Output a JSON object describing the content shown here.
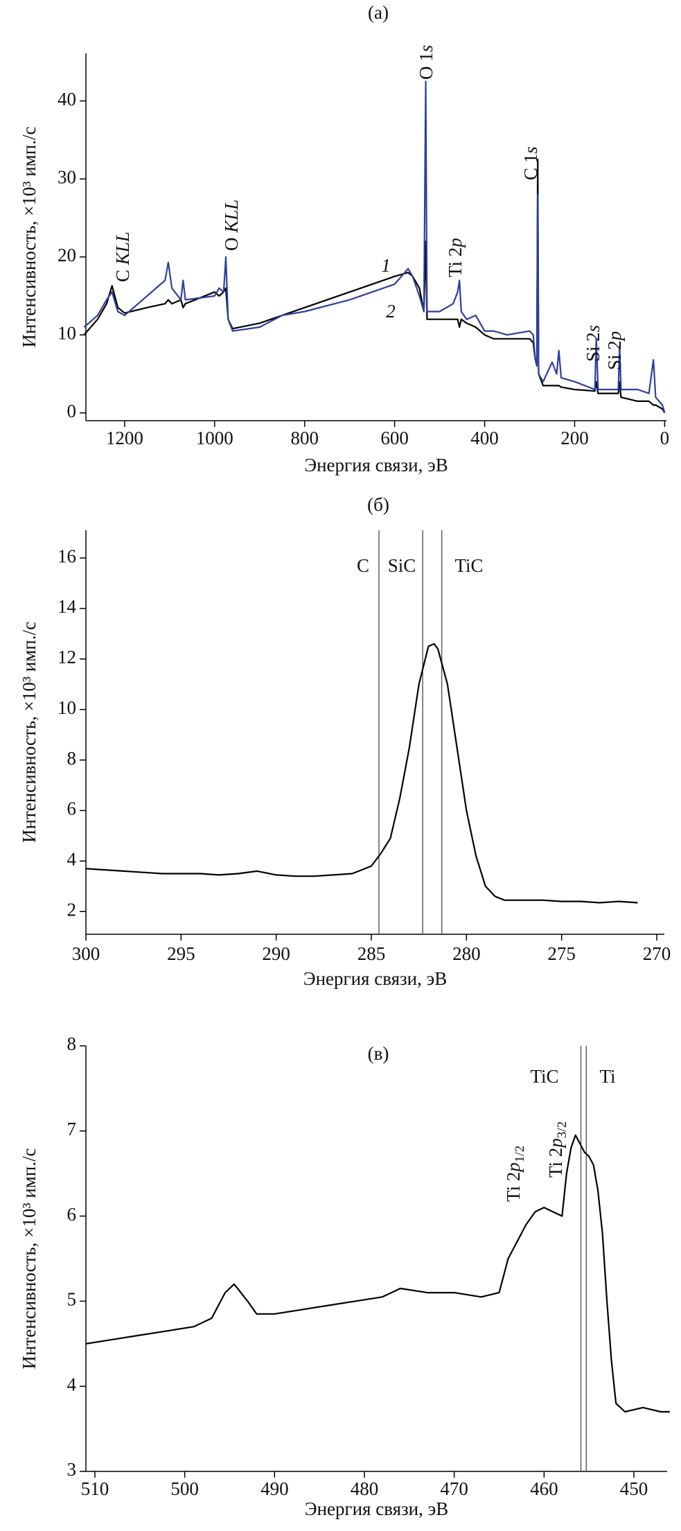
{
  "chart_data": [
    {
      "type": "line",
      "title": "(а)",
      "xlabel": "Энергия связи, эВ",
      "ylabel": "Интенсивность, ×10³ имп./с",
      "xlim": [
        1286,
        -4
      ],
      "ylim": [
        -1,
        46.1
      ],
      "xticks": [
        1200,
        1000,
        800,
        600,
        400,
        200,
        0
      ],
      "yticks": [
        0,
        10,
        20,
        30,
        40
      ],
      "x": [
        1290,
        1260,
        1240,
        1228,
        1215,
        1200,
        1150,
        1110,
        1103,
        1095,
        1075,
        1070,
        1065,
        1000,
        990,
        980,
        975,
        970,
        960,
        900,
        850,
        800,
        700,
        600,
        570,
        560,
        545,
        535,
        531,
        528,
        500,
        470,
        460,
        456,
        452,
        440,
        420,
        400,
        380,
        350,
        300,
        292,
        288,
        284,
        282,
        280,
        270,
        250,
        240,
        235,
        230,
        200,
        155,
        152,
        148,
        103,
        100,
        97,
        60,
        35,
        25,
        20,
        5,
        0
      ],
      "series": [
        {
          "name": "1",
          "color": "#000000",
          "values": [
            10,
            12,
            14,
            16.3,
            13.5,
            12.8,
            13.5,
            14,
            14.5,
            14,
            14.5,
            13.5,
            14,
            15.5,
            15,
            15.5,
            16,
            12,
            10.8,
            11.5,
            12.5,
            13.5,
            15.5,
            17.5,
            18,
            17.5,
            16,
            13,
            22,
            12,
            12,
            12,
            12,
            11,
            12,
            11.5,
            11,
            10,
            9.5,
            9.5,
            9.5,
            9,
            7,
            6.5,
            32.5,
            5,
            3.5,
            3.5,
            3.5,
            3.5,
            3.3,
            3,
            2.8,
            4,
            2.5,
            2.5,
            4,
            2,
            1.5,
            1.5,
            1,
            1,
            0.5,
            0
          ]
        },
        {
          "name": "2",
          "color": "#2e3f9e",
          "values": [
            11,
            12.5,
            14.5,
            15.5,
            13,
            12.5,
            15,
            17,
            19.3,
            16,
            14.5,
            17,
            14.5,
            15,
            16,
            15.5,
            20,
            12,
            10.5,
            11,
            12.5,
            13,
            14.5,
            16.5,
            18.5,
            17.5,
            15,
            13,
            42.5,
            13,
            13,
            14,
            15.5,
            17,
            13,
            12,
            12.5,
            10.5,
            10.5,
            10,
            10.5,
            10,
            7,
            6,
            28,
            5,
            4,
            6.5,
            5,
            8,
            4.5,
            4,
            3,
            9.5,
            3,
            3,
            8.5,
            3,
            3,
            2.5,
            6.8,
            2,
            1,
            0
          ]
        }
      ],
      "annotations": [
        [
          "C ",
          "KLL"
        ],
        [
          "O ",
          "KLL"
        ],
        [
          "O 1",
          "s"
        ],
        [
          "C 1",
          "s"
        ],
        [
          "Ti 2",
          "p"
        ],
        [
          "Si 2",
          "s"
        ],
        [
          "Si 2",
          "p"
        ]
      ]
    },
    {
      "type": "line",
      "title": "(б)",
      "xlabel": "Энергия связи, эВ",
      "ylabel": "Интенсивность, ×10³ имп./с",
      "xlim": [
        300,
        269.6
      ],
      "ylim": [
        1.1,
        17.1
      ],
      "xticks": [
        300,
        295,
        290,
        285,
        280,
        275,
        270
      ],
      "yticks": [
        2,
        4,
        6,
        8,
        10,
        12,
        14,
        16
      ],
      "x": [
        300,
        299,
        298,
        297,
        296,
        295,
        294,
        293,
        292,
        291,
        290,
        289,
        288,
        287,
        286,
        285,
        284.5,
        284,
        283.5,
        283,
        282.5,
        282,
        281.7,
        281.5,
        281,
        280.5,
        280,
        279.5,
        279,
        278.5,
        278,
        277,
        276,
        275,
        274,
        273,
        272,
        271
      ],
      "values": [
        3.7,
        3.65,
        3.6,
        3.55,
        3.5,
        3.5,
        3.5,
        3.45,
        3.5,
        3.6,
        3.45,
        3.4,
        3.4,
        3.45,
        3.5,
        3.8,
        4.3,
        4.9,
        6.5,
        8.5,
        11,
        12.5,
        12.6,
        12.4,
        11,
        8.5,
        6,
        4.2,
        3,
        2.6,
        2.45,
        2.45,
        2.45,
        2.4,
        2.4,
        2.35,
        2.4,
        2.35
      ],
      "color": "#000000",
      "reference_lines": [
        {
          "x": 284.6,
          "label": "C"
        },
        {
          "x": 282.3,
          "label": "SiC"
        },
        {
          "x": 281.3,
          "label": "TiC"
        }
      ]
    },
    {
      "type": "line",
      "title": "(в)",
      "xlabel": "Энергия связи, эВ",
      "ylabel": "Интенсивность, ×10³ имп./с",
      "xlim": [
        511,
        446.3
      ],
      "ylim": [
        3,
        8
      ],
      "xticks": [
        510,
        500,
        490,
        480,
        470,
        460,
        450
      ],
      "yticks": [
        3,
        4,
        5,
        6,
        7,
        8
      ],
      "x": [
        511,
        508,
        505,
        502,
        499,
        497,
        495.5,
        494.5,
        493,
        492,
        490,
        487,
        484,
        481,
        478,
        476,
        473,
        470,
        467,
        465,
        464,
        462,
        461,
        460,
        459,
        458,
        457.5,
        457,
        456.5,
        456,
        455.5,
        455,
        454.5,
        454,
        453.5,
        453,
        452.5,
        452,
        451,
        449,
        447,
        446
      ],
      "values": [
        4.5,
        4.55,
        4.6,
        4.65,
        4.7,
        4.8,
        5.1,
        5.2,
        5.0,
        4.85,
        4.85,
        4.9,
        4.95,
        5.0,
        5.05,
        5.15,
        5.1,
        5.1,
        5.05,
        5.1,
        5.5,
        5.9,
        6.05,
        6.1,
        6.05,
        6.0,
        6.5,
        6.8,
        6.95,
        6.85,
        6.75,
        6.7,
        6.6,
        6.3,
        5.8,
        5.0,
        4.3,
        3.8,
        3.7,
        3.75,
        3.7,
        3.7
      ],
      "color": "#000000",
      "reference_lines": [
        {
          "x": 455.9,
          "label": "TiC"
        },
        {
          "x": 455.3,
          "label": "Ti"
        }
      ],
      "annotations": [
        [
          "Ti 2",
          "p",
          "1/2"
        ],
        [
          "Ti 2",
          "p",
          "3/2"
        ]
      ]
    }
  ]
}
